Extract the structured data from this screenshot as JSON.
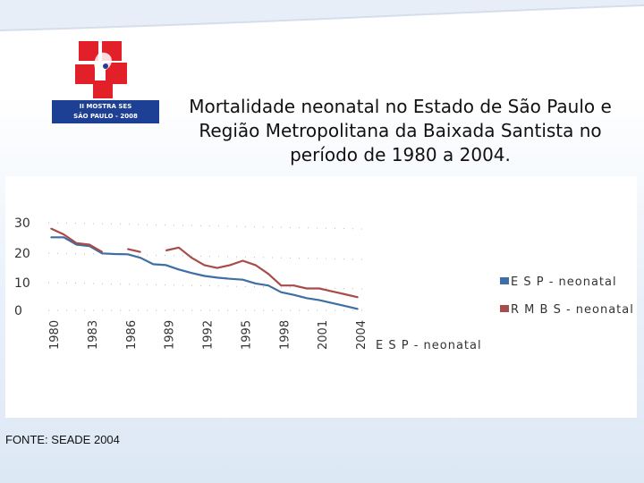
{
  "title": {
    "line1": "Mortalidade neonatal no Estado de São Paulo e",
    "line2": "Região Metropolitana da Baixada Santista no",
    "line3": "período de 1980 a 2004."
  },
  "logo": {
    "line1": "II MOSTRA SES",
    "line2": "SÃO PAULO - 2008"
  },
  "footer": {
    "source": "FONTE: SEADE 2004"
  },
  "colors": {
    "esp": "#3e6ea3",
    "rmbs": "#a84b4b",
    "brand_red": "#e2202a",
    "brand_blue": "#1d3f94"
  },
  "chart_data": {
    "type": "line",
    "title": "",
    "xlabel": "",
    "ylabel": "",
    "ylim": [
      0,
      30
    ],
    "yticks": [
      "30",
      "20",
      "10",
      "0"
    ],
    "x": [
      "1980",
      "1981",
      "1982",
      "1983",
      "1984",
      "1985",
      "1986",
      "1987",
      "1988",
      "1989",
      "1990",
      "1991",
      "1992",
      "1993",
      "1994",
      "1995",
      "1996",
      "1997",
      "1998",
      "1999",
      "2000",
      "2001",
      "2002",
      "2003",
      "2004"
    ],
    "xtick_labels": [
      "1980",
      "1983",
      "1986",
      "1989",
      "1992",
      "1995",
      "1998",
      "2001",
      "2004"
    ],
    "x_axis_series_label": "E S P - neonatal",
    "legend_position": "right",
    "series": [
      {
        "name": "E S P - neonatal",
        "values": [
          25.0,
          25.0,
          22.5,
          22.0,
          19.5,
          19.3,
          19.2,
          18.0,
          15.8,
          15.5,
          14.0,
          12.8,
          11.8,
          11.2,
          10.8,
          10.5,
          9.2,
          8.5,
          6.2,
          5.3,
          4.2,
          3.5,
          2.5,
          1.5,
          0.5
        ]
      },
      {
        "name": "R M B S - neonatal",
        "values": [
          28.0,
          26.0,
          23.0,
          22.5,
          20.0,
          null,
          21.0,
          20.0,
          null,
          20.5,
          21.5,
          18.0,
          15.5,
          14.5,
          15.5,
          17.0,
          15.5,
          12.5,
          8.5,
          8.5,
          7.5,
          7.5,
          6.5,
          5.5,
          4.5
        ]
      }
    ]
  }
}
